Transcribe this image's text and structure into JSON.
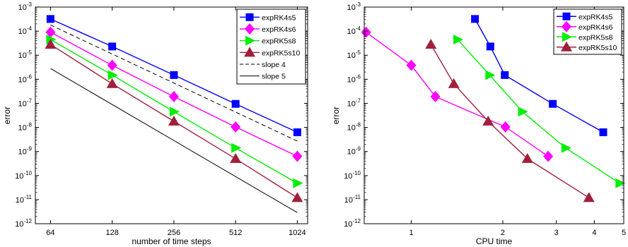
{
  "chart_data": [
    {
      "type": "line",
      "xscale": "log2",
      "yscale": "log10",
      "xlim": [
        54,
        1150
      ],
      "ylim": [
        1e-12,
        0.001
      ],
      "xticks": [
        64,
        128,
        256,
        512,
        1024
      ],
      "xtick_labels": [
        "64",
        "128",
        "256",
        "512",
        "1024"
      ],
      "yticks": [
        -12,
        -11,
        -10,
        -9,
        -8,
        -7,
        -6,
        -5,
        -4,
        -3
      ],
      "ytick_labels": [
        "10-12",
        "10-11",
        "10-10",
        "10-9",
        "10-8",
        "10-7",
        "10-6",
        "10-5",
        "10-4",
        "10-3"
      ],
      "xlabel": "number of time steps",
      "ylabel": "error",
      "legend_position": "top-right",
      "grid": false,
      "series": [
        {
          "name": "expRK4s5",
          "color": "#0000ff",
          "marker": "square",
          "x": [
            64,
            128,
            256,
            512,
            1024
          ],
          "y": [
            0.00032,
            2.3e-05,
            1.5e-06,
            9.5e-08,
            6.3e-09
          ]
        },
        {
          "name": "expRK4s6",
          "color": "#ff00ff",
          "marker": "diamond",
          "x": [
            64,
            128,
            256,
            512,
            1024
          ],
          "y": [
            9e-05,
            3.8e-06,
            1.9e-07,
            1.05e-08,
            6.3e-10
          ]
        },
        {
          "name": "expRK5s8",
          "color": "#00ee00",
          "marker": "triangle-right",
          "x": [
            64,
            128,
            256,
            512,
            1024
          ],
          "y": [
            4.5e-05,
            1.5e-06,
            4.5e-08,
            1.4e-09,
            4.8e-11
          ]
        },
        {
          "name": "expRK5s10",
          "color": "#a0203c",
          "marker": "triangle-up",
          "x": [
            64,
            128,
            256,
            512,
            1024
          ],
          "y": [
            2.8e-05,
            6.5e-07,
            1.8e-08,
            5e-10,
            1.2e-11
          ]
        },
        {
          "name": "slope 4",
          "color": "#000000",
          "style": "dashed",
          "x": [
            64,
            1024
          ],
          "y": [
            0.00018,
            2.7e-09
          ]
        },
        {
          "name": "slope 5",
          "color": "#000000",
          "style": "solid",
          "x": [
            64,
            1024
          ],
          "y": [
            2.8e-06,
            2.9e-12
          ]
        }
      ]
    },
    {
      "type": "line",
      "xscale": "log10",
      "yscale": "log10",
      "xlim": [
        0.7,
        5
      ],
      "ylim": [
        1e-12,
        0.001
      ],
      "xticks": [
        1,
        2,
        3,
        4,
        5
      ],
      "xtick_labels": [
        "1",
        "2",
        "3",
        "4",
        "5"
      ],
      "yticks": [
        -12,
        -11,
        -10,
        -9,
        -8,
        -7,
        -6,
        -5,
        -4,
        -3
      ],
      "ytick_labels": [
        "10-12",
        "10-11",
        "10-10",
        "10-9",
        "10-8",
        "10-7",
        "10-6",
        "10-5",
        "10-4",
        "10-3"
      ],
      "xlabel": "CPU time",
      "ylabel": "error",
      "legend_position": "top-right",
      "grid": false,
      "series": [
        {
          "name": "expRK4s5",
          "color": "#0000ff",
          "marker": "square",
          "x": [
            1.62,
            1.82,
            2.03,
            2.92,
            4.28
          ],
          "y": [
            0.00032,
            2.3e-05,
            1.5e-06,
            9.5e-08,
            6.3e-09
          ]
        },
        {
          "name": "expRK4s6",
          "color": "#ff00ff",
          "marker": "diamond",
          "x": [
            0.71,
            1.0,
            1.2,
            2.04,
            2.82
          ],
          "y": [
            9e-05,
            3.8e-06,
            1.9e-07,
            1.05e-08,
            6.3e-10
          ]
        },
        {
          "name": "expRK5s8",
          "color": "#00ee00",
          "marker": "triangle-right",
          "x": [
            1.42,
            1.81,
            2.32,
            3.22,
            4.85
          ],
          "y": [
            4.5e-05,
            1.5e-06,
            4.5e-08,
            1.4e-09,
            4.8e-11
          ]
        },
        {
          "name": "expRK5s10",
          "color": "#a0203c",
          "marker": "triangle-up",
          "x": [
            1.16,
            1.38,
            1.79,
            2.41,
            3.84
          ],
          "y": [
            2.8e-05,
            6.5e-07,
            1.8e-08,
            5e-10,
            1.2e-11
          ]
        }
      ]
    }
  ]
}
